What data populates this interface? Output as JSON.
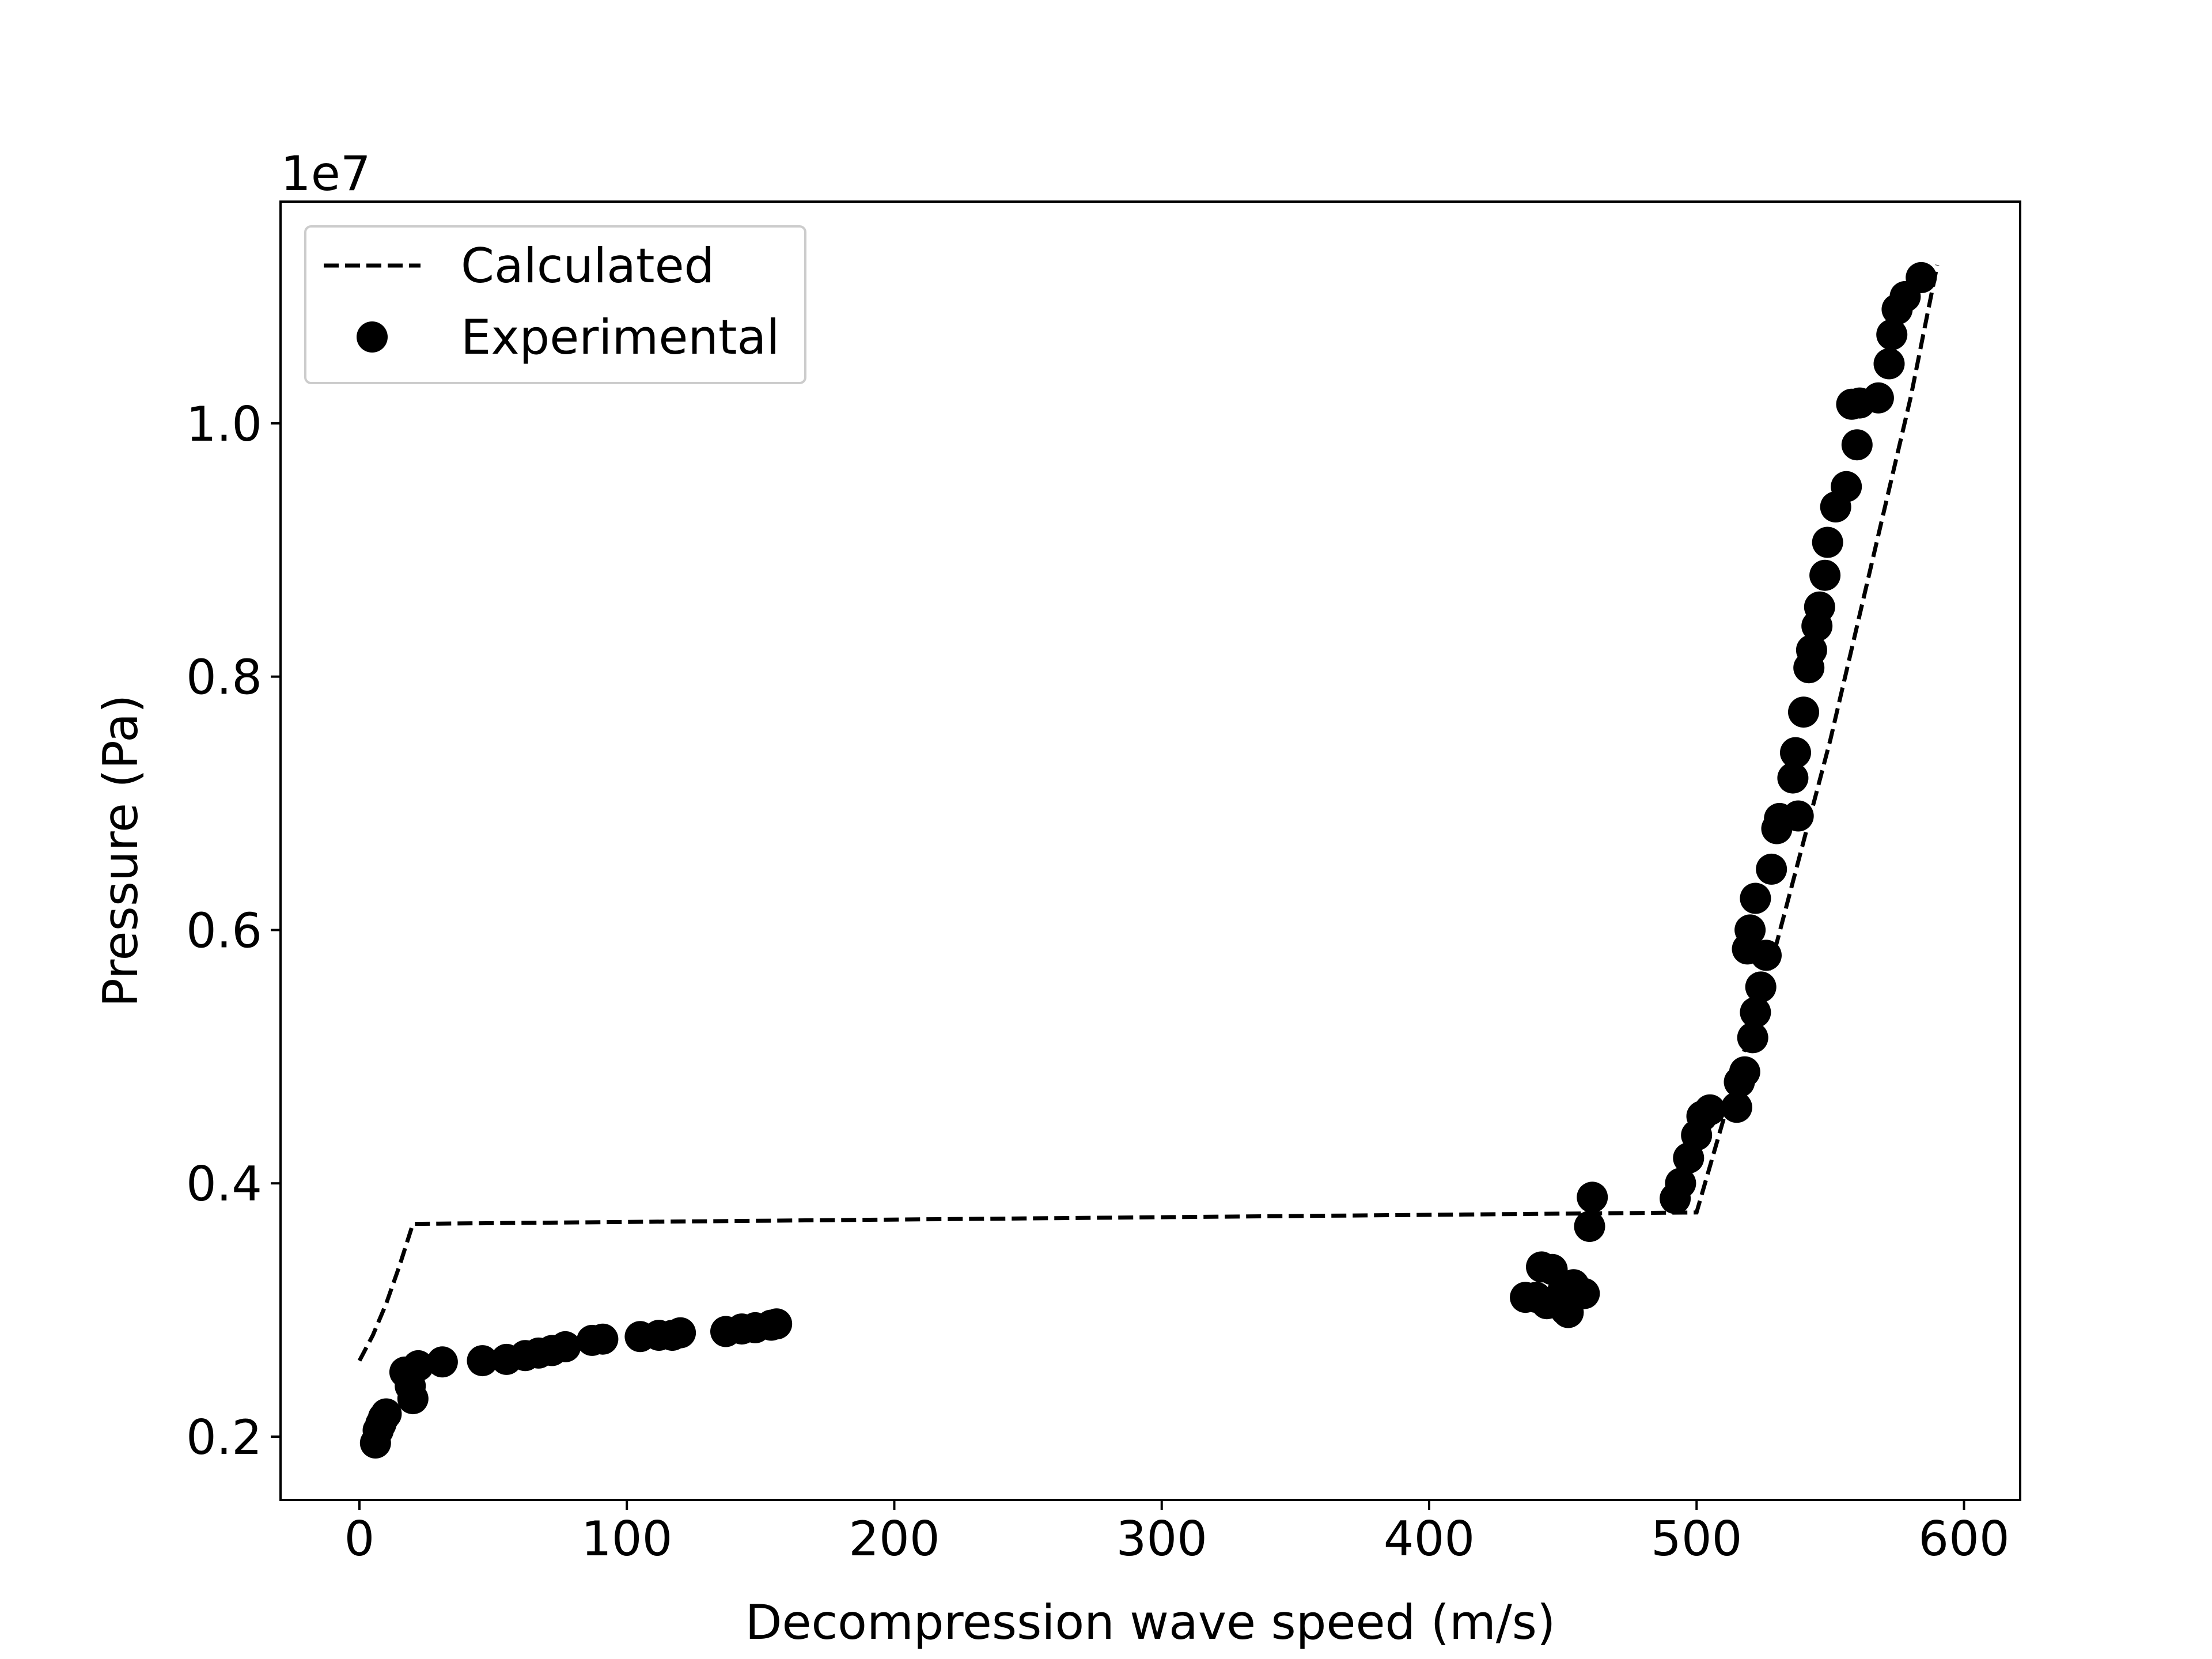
{
  "chart_data": {
    "type": "scatter",
    "xlabel": "Decompression wave speed (m/s)",
    "ylabel": "Pressure (Pa)",
    "y_offset_label": "1e7",
    "xlim": [
      -29.5,
      621
    ],
    "ylim": [
      1500000.0,
      11750000.0
    ],
    "x_ticks": [
      {
        "value": 0,
        "label": "0"
      },
      {
        "value": 100,
        "label": "100"
      },
      {
        "value": 200,
        "label": "200"
      },
      {
        "value": 300,
        "label": "300"
      },
      {
        "value": 400,
        "label": "400"
      },
      {
        "value": 500,
        "label": "500"
      },
      {
        "value": 600,
        "label": "600"
      }
    ],
    "y_ticks": [
      {
        "value": 2000000,
        "label": "0.2"
      },
      {
        "value": 4000000,
        "label": "0.4"
      },
      {
        "value": 6000000,
        "label": "0.6"
      },
      {
        "value": 8000000,
        "label": "0.8"
      },
      {
        "value": 10000000,
        "label": "1.0"
      }
    ],
    "grid": false,
    "legend_position": "top-left",
    "series": [
      {
        "name": "Calculated",
        "style": "dashed-line",
        "color": "#000000",
        "x": [
          0,
          5,
          10,
          15,
          20,
          500,
          510,
          520,
          530,
          540,
          550,
          560,
          570,
          580,
          590
        ],
        "y": [
          2600000,
          2800000,
          3050000,
          3350000,
          3680000,
          3770000,
          4500000,
          5200000,
          5900000,
          6700000,
          7500000,
          8400000,
          9300000,
          10200000,
          11250000
        ]
      },
      {
        "name": "Experimental",
        "style": "markers",
        "color": "#000000",
        "x": [
          6,
          7,
          8,
          9,
          10,
          17,
          19,
          20,
          22,
          31,
          46,
          55,
          62,
          67,
          72,
          77,
          87,
          91,
          105,
          112,
          117,
          120,
          137,
          143,
          148,
          154,
          156,
          436,
          440,
          442,
          444,
          446,
          448,
          450,
          451,
          452,
          454,
          458,
          460,
          461,
          492,
          494,
          497,
          500,
          502,
          505,
          515,
          516,
          518,
          519,
          520,
          521,
          522,
          522,
          524,
          526,
          528,
          530,
          531,
          536,
          537,
          538,
          540,
          542,
          543,
          545,
          546,
          548,
          549,
          552,
          556,
          558,
          560,
          561,
          568,
          572,
          573,
          575,
          578,
          584
        ],
        "y": [
          1950000,
          2050000,
          2100000,
          2150000,
          2180000,
          2510000,
          2400000,
          2300000,
          2560000,
          2590000,
          2600000,
          2610000,
          2640000,
          2660000,
          2680000,
          2710000,
          2760000,
          2770000,
          2790000,
          2800000,
          2800000,
          2820000,
          2830000,
          2850000,
          2860000,
          2880000,
          2890000,
          3100000,
          3100000,
          3340000,
          3050000,
          3320000,
          3050000,
          3150000,
          3000000,
          2980000,
          3200000,
          3130000,
          3660000,
          3890000,
          3880000,
          4000000,
          4200000,
          4380000,
          4530000,
          4580000,
          4600000,
          4800000,
          4880000,
          5850000,
          6000000,
          5150000,
          5350000,
          6250000,
          5550000,
          5800000,
          6480000,
          6800000,
          6880000,
          7200000,
          7400000,
          6900000,
          7720000,
          8070000,
          8210000,
          8400000,
          8550000,
          8800000,
          9060000,
          9340000,
          9500000,
          10150000,
          9830000,
          10160000,
          10200000,
          10470000,
          10700000,
          10900000,
          11000000,
          11150000
        ]
      }
    ]
  }
}
